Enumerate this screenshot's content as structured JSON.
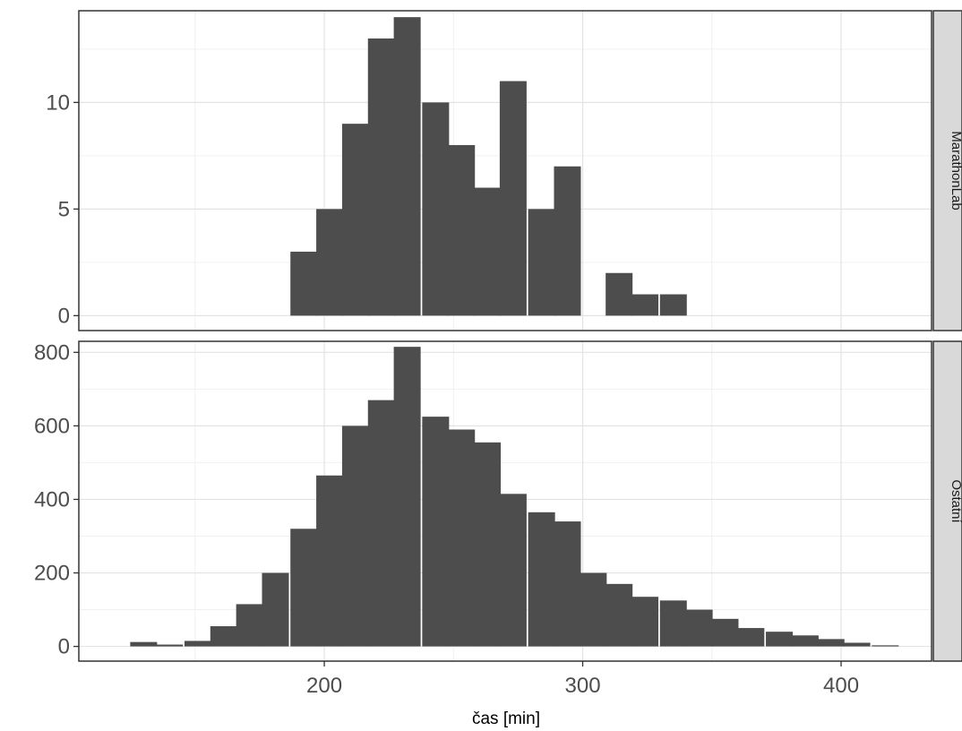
{
  "chart_data": {
    "type": "bar",
    "subtype": "faceted-histogram",
    "xlabel": "čas [min]",
    "ylabel": "",
    "xlim": [
      105,
      435
    ],
    "x_ticks": [
      200,
      300,
      400
    ],
    "x_tick_labels": [
      "200",
      "300",
      "400"
    ],
    "grid": true,
    "bar_color": "#4d4d4d",
    "bin_width": 10.23,
    "facets": [
      {
        "name": "MarathonLab",
        "ylim": [
          -0.7,
          14.3
        ],
        "y_ticks": [
          0,
          5,
          10
        ],
        "y_tick_labels": [
          "0",
          "5",
          "10"
        ],
        "bins": [
          {
            "x": 192,
            "value": 3
          },
          {
            "x": 202,
            "value": 5
          },
          {
            "x": 212,
            "value": 9
          },
          {
            "x": 222,
            "value": 13
          },
          {
            "x": 232,
            "value": 14
          },
          {
            "x": 243,
            "value": 10
          },
          {
            "x": 253,
            "value": 8
          },
          {
            "x": 263,
            "value": 6
          },
          {
            "x": 273,
            "value": 11
          },
          {
            "x": 284,
            "value": 5
          },
          {
            "x": 294,
            "value": 7
          },
          {
            "x": 304,
            "value": 0
          },
          {
            "x": 314,
            "value": 2
          },
          {
            "x": 324,
            "value": 1
          },
          {
            "x": 335,
            "value": 1
          }
        ]
      },
      {
        "name": "Ostatní",
        "ylim": [
          -40,
          830
        ],
        "y_ticks": [
          0,
          200,
          400,
          600,
          800
        ],
        "y_tick_labels": [
          "0",
          "200",
          "400",
          "600",
          "800"
        ],
        "bins": [
          {
            "x": 130,
            "value": 12
          },
          {
            "x": 140,
            "value": 5
          },
          {
            "x": 151,
            "value": 15
          },
          {
            "x": 161,
            "value": 55
          },
          {
            "x": 171,
            "value": 115
          },
          {
            "x": 181,
            "value": 200
          },
          {
            "x": 192,
            "value": 320
          },
          {
            "x": 202,
            "value": 465
          },
          {
            "x": 212,
            "value": 600
          },
          {
            "x": 222,
            "value": 670
          },
          {
            "x": 232,
            "value": 815
          },
          {
            "x": 243,
            "value": 625
          },
          {
            "x": 253,
            "value": 590
          },
          {
            "x": 263,
            "value": 555
          },
          {
            "x": 273,
            "value": 415
          },
          {
            "x": 284,
            "value": 365
          },
          {
            "x": 294,
            "value": 340
          },
          {
            "x": 304,
            "value": 200
          },
          {
            "x": 314,
            "value": 170
          },
          {
            "x": 324,
            "value": 135
          },
          {
            "x": 335,
            "value": 125
          },
          {
            "x": 345,
            "value": 100
          },
          {
            "x": 355,
            "value": 75
          },
          {
            "x": 365,
            "value": 50
          },
          {
            "x": 376,
            "value": 40
          },
          {
            "x": 386,
            "value": 30
          },
          {
            "x": 396,
            "value": 20
          },
          {
            "x": 406,
            "value": 10
          },
          {
            "x": 417,
            "value": 3
          }
        ]
      }
    ]
  }
}
